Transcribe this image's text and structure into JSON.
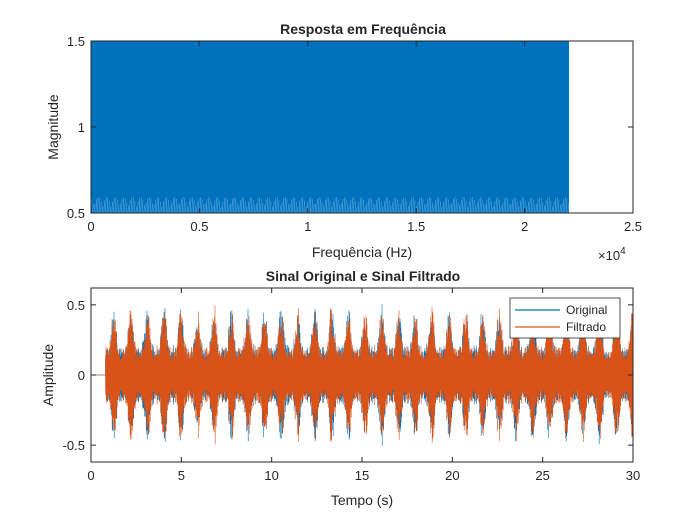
{
  "colors": {
    "blue": "#0072BD",
    "orange": "#D95319",
    "axis": "#262626",
    "background": "#ffffff"
  },
  "chart_data": [
    {
      "type": "line",
      "title": "Resposta em Frequência",
      "xlabel": "Frequência (Hz)",
      "ylabel": "Magnitude",
      "xlim": [
        0,
        25000
      ],
      "ylim": [
        0.5,
        1.5
      ],
      "x_ticks": [
        0,
        5000,
        10000,
        15000,
        20000,
        25000
      ],
      "x_tick_labels": [
        "0",
        "0.5",
        "1",
        "1.5",
        "2",
        "2.5"
      ],
      "x_exponent_label": "×10",
      "x_exponent_power": "4",
      "y_ticks": [
        0.5,
        1,
        1.5
      ],
      "y_tick_labels": [
        "0.5",
        "1",
        "1.5"
      ],
      "grid": false,
      "series": [
        {
          "color": "#0072BD",
          "x_range": [
            0,
            22050
          ],
          "y_min": 0.5,
          "y_max": 1.5,
          "oscillating": true
        }
      ]
    },
    {
      "type": "line",
      "title": "Sinal Original e Sinal Filtrado",
      "xlabel": "Tempo (s)",
      "ylabel": "Amplitude",
      "xlim": [
        0,
        30
      ],
      "ylim": [
        -0.62,
        0.62
      ],
      "x_ticks": [
        0,
        5,
        10,
        15,
        20,
        25,
        30
      ],
      "x_tick_labels": [
        "0",
        "5",
        "10",
        "15",
        "20",
        "25",
        "30"
      ],
      "y_ticks": [
        -0.5,
        0,
        0.5
      ],
      "y_tick_labels": [
        "-0.5",
        "0",
        "0.5"
      ],
      "grid": false,
      "legend_position": "top-right",
      "series": [
        {
          "name": "Original",
          "color": "#0072BD",
          "signal_start": 0.8,
          "signal_end": 30
        },
        {
          "name": "Filtrado",
          "color": "#D95319",
          "signal_start": 0.8,
          "signal_end": 30
        }
      ]
    }
  ]
}
